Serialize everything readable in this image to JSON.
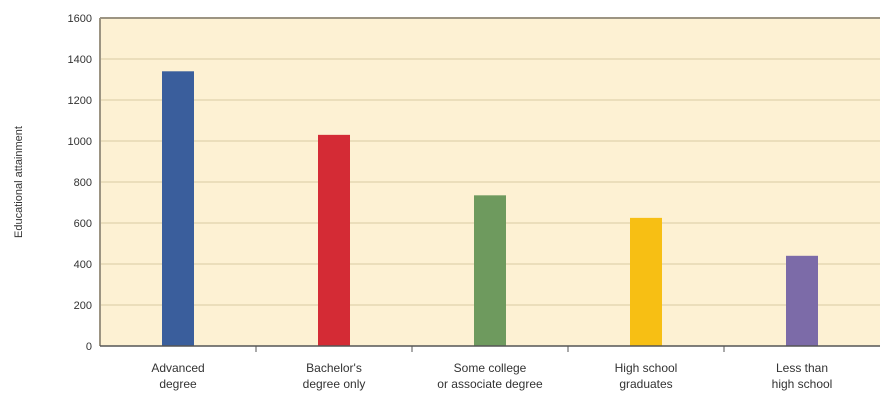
{
  "chart_data": {
    "type": "bar",
    "title": "",
    "xlabel": "",
    "ylabel": "Educational attainment",
    "ylim": [
      0,
      1600
    ],
    "yticks": [
      0,
      200,
      400,
      600,
      800,
      1000,
      1200,
      1400,
      1600
    ],
    "grid": true,
    "legend": "none",
    "categories": [
      [
        "Advanced",
        "degree"
      ],
      [
        "Bachelor's",
        "degree only"
      ],
      [
        "Some college",
        "or associate degree"
      ],
      [
        "High school",
        "graduates"
      ],
      [
        "Less than",
        "high school"
      ]
    ],
    "values": [
      1340,
      1030,
      735,
      625,
      440
    ],
    "colors": [
      "#3a5e9c",
      "#d42b35",
      "#6e9a5e",
      "#f7bf14",
      "#7c6ba8"
    ],
    "background_color": "#fdf1d3",
    "gridline_color": "#d9cba3"
  }
}
